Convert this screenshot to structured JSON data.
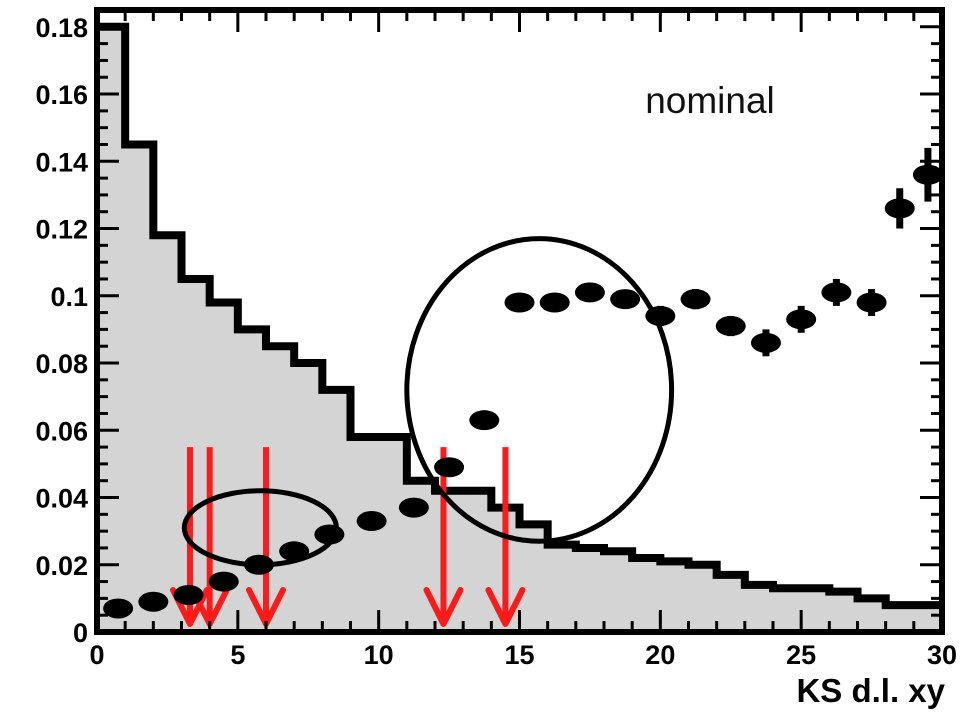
{
  "chart_data": {
    "type": "bar",
    "xlabel": "KS d.l. xy",
    "ylabel": "",
    "xlim": [
      0,
      30
    ],
    "ylim": [
      0,
      0.185
    ],
    "x_ticks": [
      0,
      5,
      10,
      15,
      20,
      25,
      30
    ],
    "x_tick_labels": [
      "0",
      "5",
      "10",
      "15",
      "20",
      "25",
      "30"
    ],
    "y_ticks": [
      0,
      0.02,
      0.04,
      0.06,
      0.08,
      0.1,
      0.12,
      0.14,
      0.16,
      0.18
    ],
    "y_tick_labels": [
      "0",
      "0.02",
      "0.04",
      "0.06",
      "0.08",
      "0.1",
      "0.12",
      "0.14",
      "0.16",
      "0.18"
    ],
    "annotation": "nominal",
    "histogram": {
      "bin_edges": [
        0,
        1,
        2,
        3,
        4,
        5,
        6,
        7,
        8,
        9,
        10,
        11,
        12,
        13,
        14,
        15,
        16,
        17,
        18,
        19,
        20,
        21,
        22,
        23,
        24,
        25,
        26,
        27,
        28,
        29,
        30
      ],
      "values": [
        0.18,
        0.145,
        0.118,
        0.105,
        0.098,
        0.09,
        0.085,
        0.08,
        0.072,
        0.058,
        0.058,
        0.045,
        0.042,
        0.042,
        0.037,
        0.032,
        0.026,
        0.025,
        0.024,
        0.022,
        0.021,
        0.02,
        0.017,
        0.014,
        0.013,
        0.013,
        0.012,
        0.01,
        0.008,
        0.008
      ],
      "fill_color": "#d4d4d4",
      "line_color": "#000000"
    },
    "points": {
      "x": [
        0.75,
        2,
        3.25,
        4.5,
        5.75,
        7,
        8.25,
        9.75,
        11.25,
        12.5,
        13.75,
        15,
        16.25,
        17.5,
        18.75,
        20,
        21.25,
        22.5,
        23.75,
        25,
        26.25,
        27.5,
        28.5,
        29.5
      ],
      "y": [
        0.007,
        0.009,
        0.011,
        0.015,
        0.02,
        0.024,
        0.029,
        0.033,
        0.037,
        0.049,
        0.063,
        0.098,
        0.098,
        0.101,
        0.099,
        0.094,
        0.099,
        0.091,
        0.086,
        0.093,
        0.101,
        0.098,
        0.126,
        0.136
      ],
      "yerr": [
        0.002,
        0.002,
        0.002,
        0.002,
        0.002,
        0.002,
        0.002,
        0.002,
        0.002,
        0.002,
        0.002,
        0.002,
        0.002,
        0.002,
        0.002,
        0.003,
        0.003,
        0.003,
        0.004,
        0.004,
        0.004,
        0.004,
        0.006,
        0.008
      ],
      "color": "#000000"
    },
    "arrows": {
      "x": [
        3.3,
        4.0,
        6.0,
        12.3,
        14.5
      ],
      "y_top": 0.055,
      "y_bottom": 0.0,
      "color": "#ff1a1a"
    },
    "ellipses": [
      {
        "cx": 5.8,
        "cy": 0.031,
        "rx": 2.7,
        "ry": 0.011
      },
      {
        "cx": 15.7,
        "cy": 0.072,
        "rx": 4.7,
        "ry": 0.045
      }
    ]
  }
}
